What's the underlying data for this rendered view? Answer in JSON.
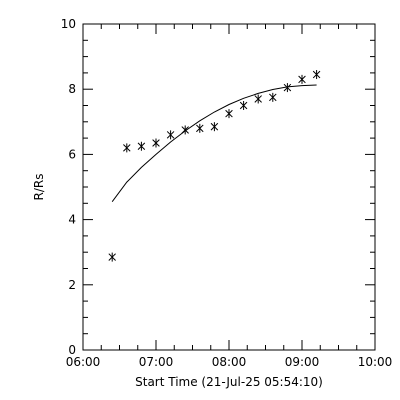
{
  "chart_data": {
    "type": "scatter",
    "title": "",
    "xlabel": "Start Time (21-Jul-25 05:54:10)",
    "ylabel": "R/Rs",
    "x_unit": "time (HH:MM, 21-Jul-25)",
    "xlim": [
      "06:00",
      "10:00"
    ],
    "ylim": [
      0,
      10
    ],
    "x_ticks": [
      "06:00",
      "07:00",
      "08:00",
      "09:00",
      "10:00"
    ],
    "x_minor_tick_interval_minutes": 15,
    "y_ticks": [
      "0",
      "2",
      "4",
      "6",
      "8",
      "10"
    ],
    "y_minor_tick_interval": 0.5,
    "grid": false,
    "legend": "none",
    "series": [
      {
        "marker": "asterisk",
        "points": [
          {
            "x": "06:24",
            "y": 2.85
          },
          {
            "x": "06:36",
            "y": 6.2
          },
          {
            "x": "06:48",
            "y": 6.25
          },
          {
            "x": "07:00",
            "y": 6.35
          },
          {
            "x": "07:12",
            "y": 6.6
          },
          {
            "x": "07:24",
            "y": 6.75
          },
          {
            "x": "07:36",
            "y": 6.8
          },
          {
            "x": "07:48",
            "y": 6.85
          },
          {
            "x": "08:00",
            "y": 7.25
          },
          {
            "x": "08:12",
            "y": 7.5
          },
          {
            "x": "08:24",
            "y": 7.7
          },
          {
            "x": "08:36",
            "y": 7.75
          },
          {
            "x": "08:48",
            "y": 8.05
          },
          {
            "x": "09:00",
            "y": 8.3
          },
          {
            "x": "09:12",
            "y": 8.45
          }
        ]
      },
      {
        "style": "line",
        "points": [
          {
            "x": "06:24",
            "y": 4.55
          },
          {
            "x": "06:36",
            "y": 5.15
          },
          {
            "x": "06:48",
            "y": 5.6
          },
          {
            "x": "07:00",
            "y": 6.0
          },
          {
            "x": "07:12",
            "y": 6.38
          },
          {
            "x": "07:24",
            "y": 6.72
          },
          {
            "x": "07:36",
            "y": 7.03
          },
          {
            "x": "07:48",
            "y": 7.3
          },
          {
            "x": "08:00",
            "y": 7.53
          },
          {
            "x": "08:12",
            "y": 7.72
          },
          {
            "x": "08:24",
            "y": 7.87
          },
          {
            "x": "08:36",
            "y": 7.99
          },
          {
            "x": "08:48",
            "y": 8.07
          },
          {
            "x": "09:00",
            "y": 8.11
          },
          {
            "x": "09:12",
            "y": 8.13
          }
        ]
      }
    ]
  }
}
